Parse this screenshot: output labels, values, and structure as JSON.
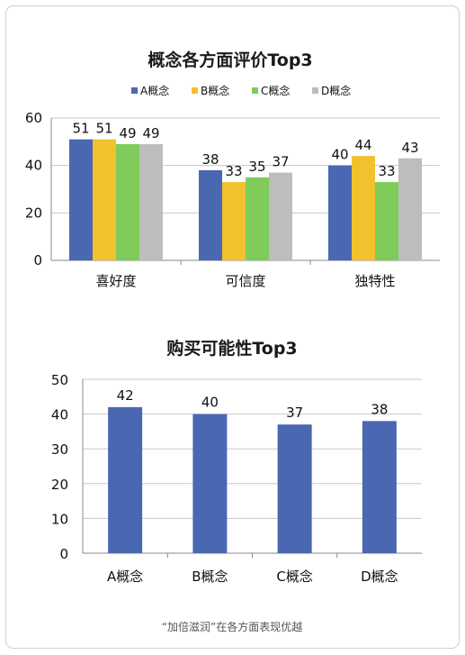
{
  "colors": {
    "A": "#4a67b2",
    "B": "#f2c12e",
    "C": "#7fcc5a",
    "D": "#bdbdbd",
    "single": "#4a67b2"
  },
  "chart_data": [
    {
      "type": "bar",
      "title": "概念各方面评价Top3",
      "categories": [
        "喜好度",
        "可信度",
        "独特性"
      ],
      "series": [
        {
          "name": "A概念",
          "values": [
            51,
            38,
            40
          ]
        },
        {
          "name": "B概念",
          "values": [
            51,
            33,
            44
          ]
        },
        {
          "name": "C概念",
          "values": [
            49,
            35,
            33
          ]
        },
        {
          "name": "D概念",
          "values": [
            49,
            37,
            43
          ]
        }
      ],
      "yticks": [
        0,
        20,
        40,
        60
      ],
      "ylim": [
        0,
        60
      ],
      "legend": "top",
      "grid": true
    },
    {
      "type": "bar",
      "title": "购买可能性Top3",
      "categories": [
        "A概念",
        "B概念",
        "C概念",
        "D概念"
      ],
      "values": [
        42,
        40,
        37,
        38
      ],
      "yticks": [
        0,
        10,
        20,
        30,
        40,
        50
      ],
      "ylim": [
        0,
        50
      ],
      "grid": true
    }
  ],
  "caption": "“加倍滋润”在各方面表现优越"
}
